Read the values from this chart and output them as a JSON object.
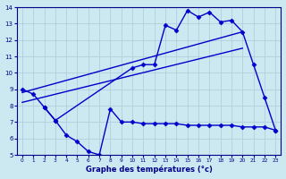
{
  "xlabel": "Graphe des températures (°c)",
  "xlim": [
    -0.5,
    23.5
  ],
  "ylim": [
    5,
    14
  ],
  "yticks": [
    5,
    6,
    7,
    8,
    9,
    10,
    11,
    12,
    13,
    14
  ],
  "xticks": [
    0,
    1,
    2,
    3,
    4,
    5,
    6,
    7,
    8,
    9,
    10,
    11,
    12,
    13,
    14,
    15,
    16,
    17,
    18,
    19,
    20,
    21,
    22,
    23
  ],
  "bg_color": "#cce8f0",
  "grid_color": "#b0d0dc",
  "line_color": "#0000cc",
  "line1": {
    "x": [
      0,
      1,
      2,
      3,
      10,
      11,
      12,
      13,
      14,
      15,
      16,
      17,
      18,
      19,
      20,
      21,
      22,
      23
    ],
    "y": [
      9.0,
      8.7,
      7.9,
      7.1,
      10.3,
      10.5,
      10.5,
      12.9,
      12.6,
      13.8,
      13.4,
      13.7,
      13.1,
      13.2,
      12.5,
      10.5,
      8.5,
      6.5
    ]
  },
  "line2": {
    "x": [
      2,
      3,
      4,
      5,
      6,
      7,
      8,
      9,
      10,
      11,
      12,
      13,
      14,
      15,
      16,
      17,
      18,
      19,
      20,
      21,
      22,
      23
    ],
    "y": [
      7.9,
      7.1,
      6.2,
      5.8,
      5.2,
      5.0,
      7.8,
      7.0,
      7.0,
      6.9,
      6.9,
      6.9,
      6.9,
      6.8,
      6.8,
      6.8,
      6.8,
      6.8,
      6.7,
      6.7,
      6.7,
      6.5
    ]
  },
  "line3": {
    "x": [
      0,
      20
    ],
    "y": [
      8.8,
      12.5
    ]
  },
  "line4": {
    "x": [
      0,
      20
    ],
    "y": [
      8.2,
      11.5
    ]
  },
  "marker": "D",
  "markersize": 2.5,
  "linewidth": 1.0
}
